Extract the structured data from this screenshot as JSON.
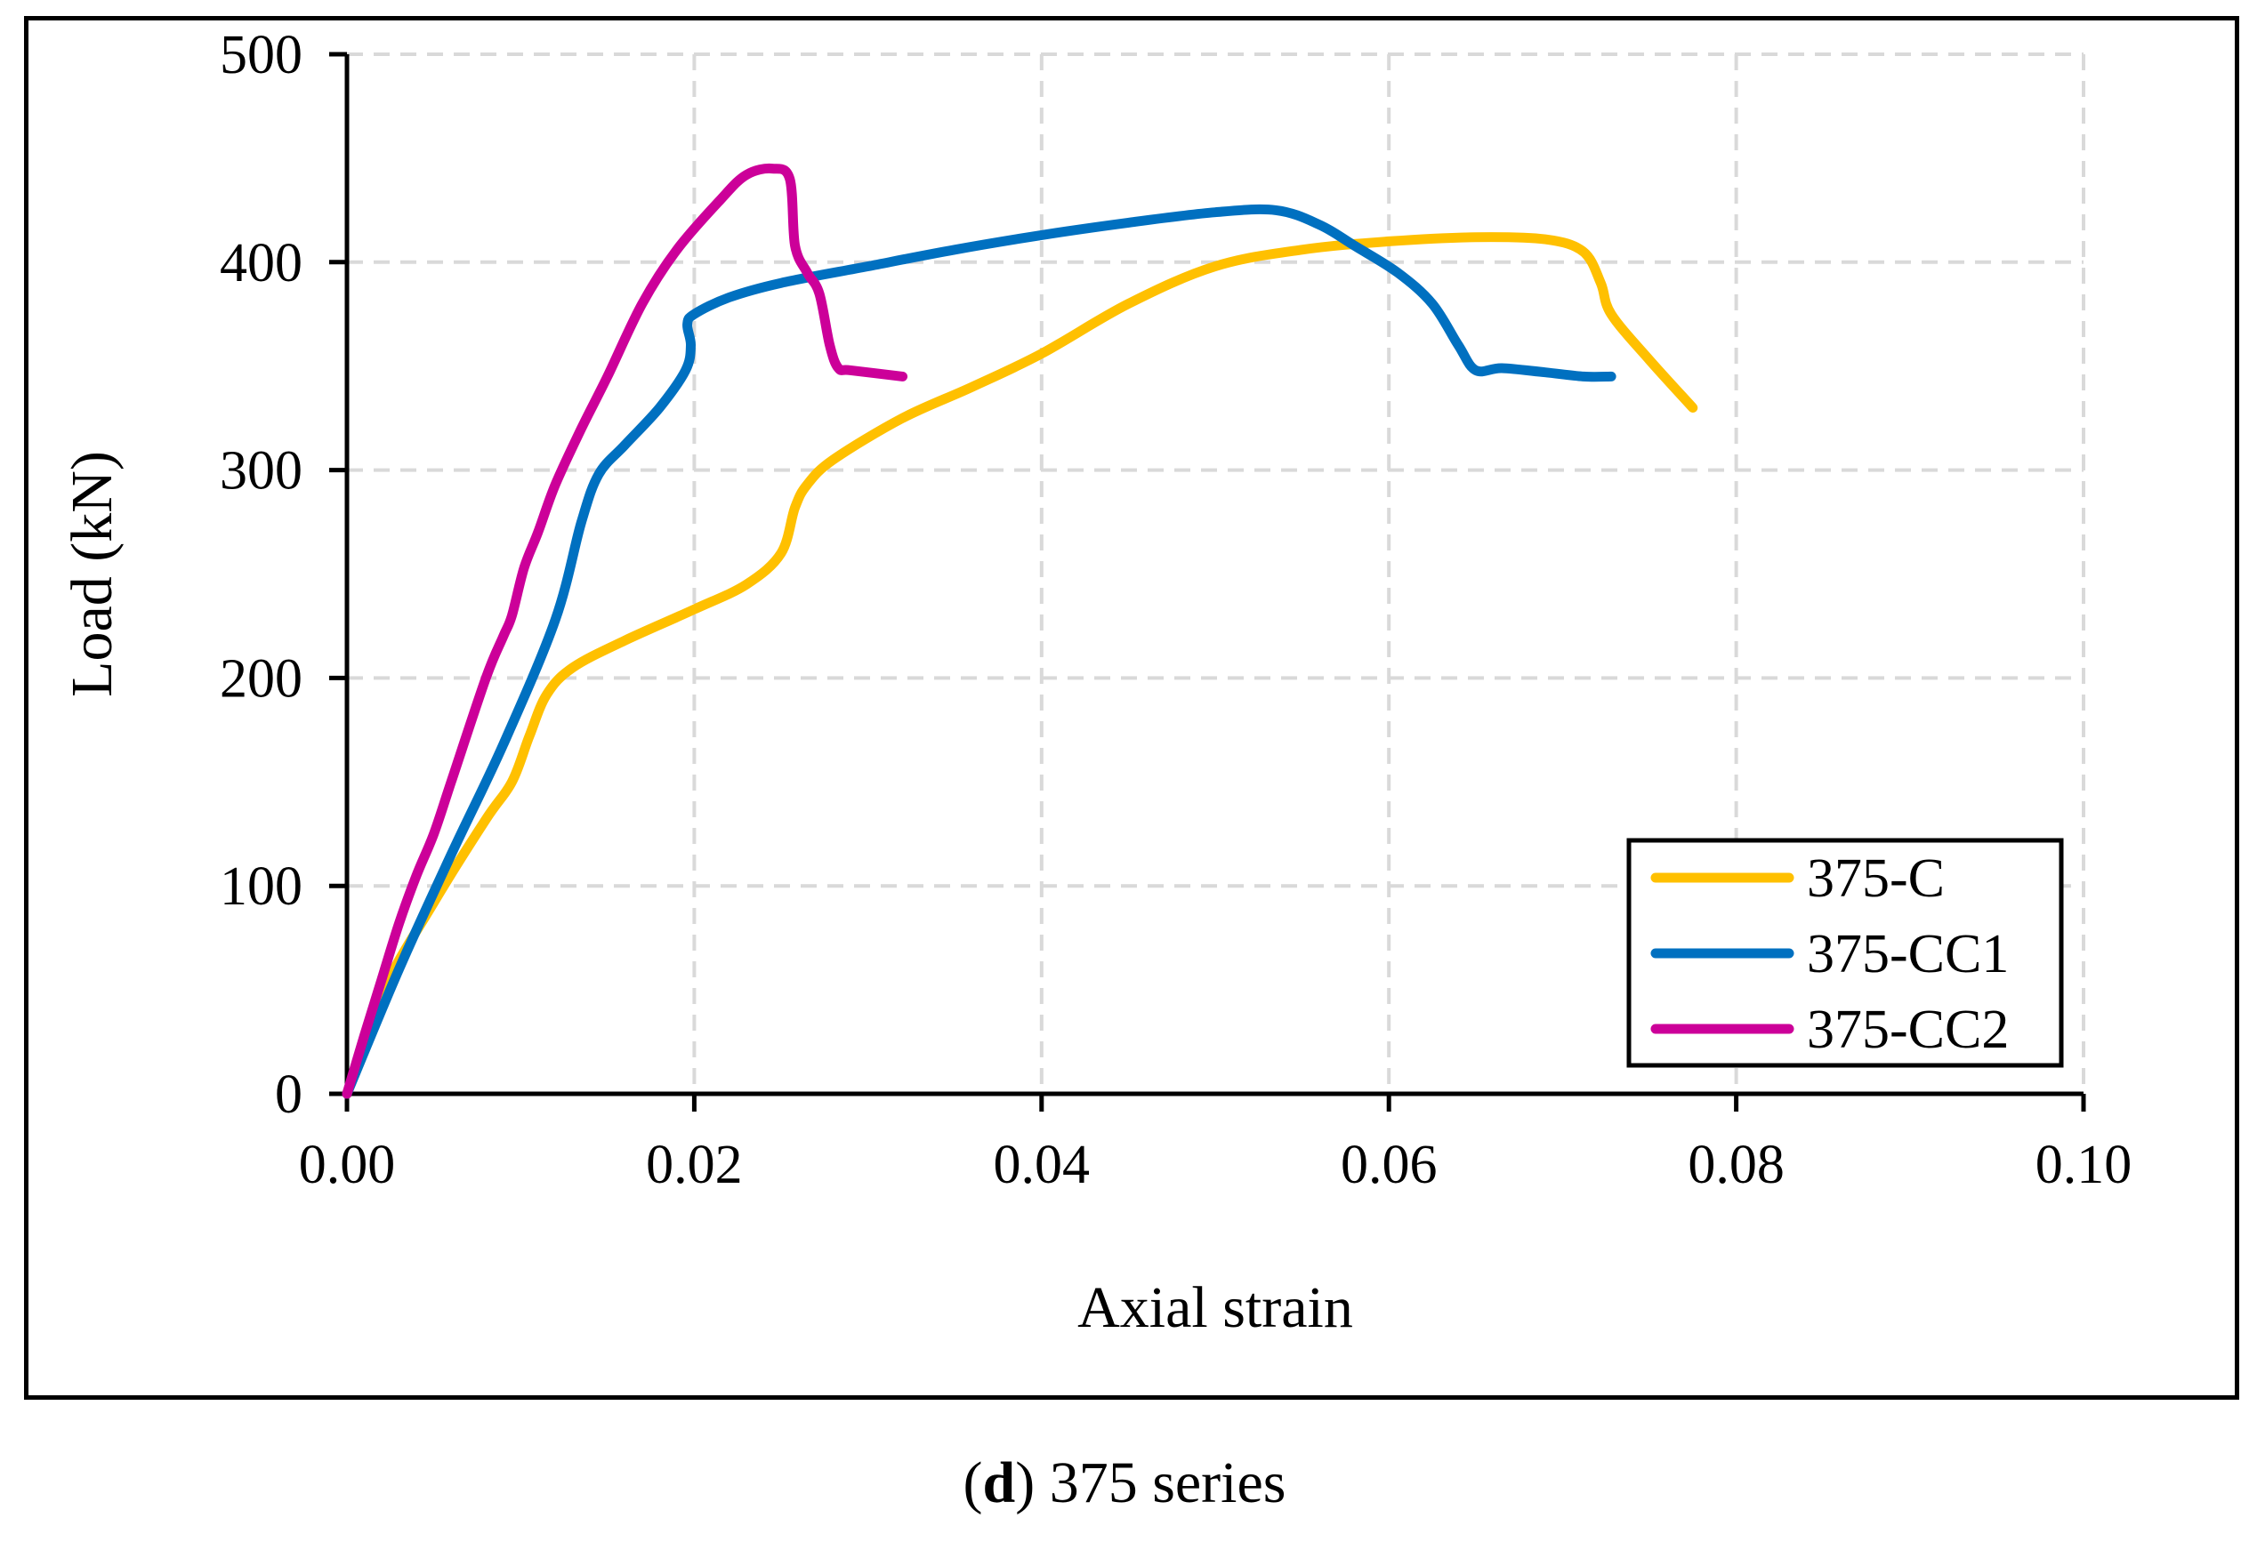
{
  "caption": {
    "letter": "d",
    "open": "(",
    "close": ")",
    "rest": " 375 series"
  },
  "chart_data": {
    "type": "line",
    "title": "",
    "xlabel": "Axial strain",
    "ylabel": "Load (kN)",
    "xlim": [
      0,
      0.1
    ],
    "ylim": [
      0,
      500
    ],
    "xticks": [
      "0.00",
      "0.02",
      "0.04",
      "0.06",
      "0.08",
      "0.10"
    ],
    "yticks": [
      "0",
      "100",
      "200",
      "300",
      "400",
      "500"
    ],
    "grid": true,
    "legend_position": "bottom-right",
    "series": [
      {
        "name": "375-C",
        "color": "#FFC000",
        "x": [
          0,
          0.002,
          0.005,
          0.008,
          0.0095,
          0.0105,
          0.0115,
          0.013,
          0.016,
          0.02,
          0.023,
          0.025,
          0.0258,
          0.0265,
          0.028,
          0.032,
          0.036,
          0.04,
          0.045,
          0.05,
          0.055,
          0.06,
          0.065,
          0.069,
          0.0712,
          0.0722,
          0.0728,
          0.075,
          0.0775
        ],
        "y": [
          0,
          48,
          92,
          132,
          150,
          172,
          192,
          205,
          218,
          233,
          245,
          260,
          282,
          293,
          305,
          325,
          340,
          356,
          380,
          398,
          406,
          410,
          412,
          411,
          405,
          390,
          375,
          353,
          330
        ]
      },
      {
        "name": "375-CC1",
        "color": "#0070C0",
        "x": [
          0,
          0.003,
          0.006,
          0.009,
          0.012,
          0.0135,
          0.0145,
          0.016,
          0.018,
          0.0195,
          0.0198,
          0.0196,
          0.02,
          0.022,
          0.025,
          0.03,
          0.035,
          0.04,
          0.045,
          0.05,
          0.0535,
          0.056,
          0.058,
          0.0605,
          0.0625,
          0.064,
          0.065,
          0.0665,
          0.069,
          0.0712,
          0.0728
        ],
        "y": [
          0,
          60,
          115,
          168,
          228,
          275,
          298,
          312,
          330,
          348,
          360,
          370,
          375,
          383,
          390,
          398,
          406,
          413,
          419,
          424,
          425,
          418,
          408,
          395,
          380,
          360,
          348,
          349,
          347,
          345,
          345
        ]
      },
      {
        "name": "375-CC2",
        "color": "#CC0099",
        "x": [
          0,
          0.001,
          0.002,
          0.003,
          0.004,
          0.005,
          0.006,
          0.008,
          0.009,
          0.0095,
          0.0102,
          0.011,
          0.012,
          0.0135,
          0.015,
          0.017,
          0.019,
          0.0215,
          0.023,
          0.0245,
          0.0255,
          0.0258,
          0.0265,
          0.0272,
          0.0278,
          0.0283,
          0.029,
          0.032
        ],
        "y": [
          0,
          28,
          55,
          82,
          105,
          125,
          150,
          200,
          220,
          230,
          253,
          270,
          293,
          320,
          345,
          380,
          406,
          430,
          442,
          445,
          440,
          408,
          395,
          385,
          360,
          349,
          348,
          345
        ]
      }
    ]
  }
}
